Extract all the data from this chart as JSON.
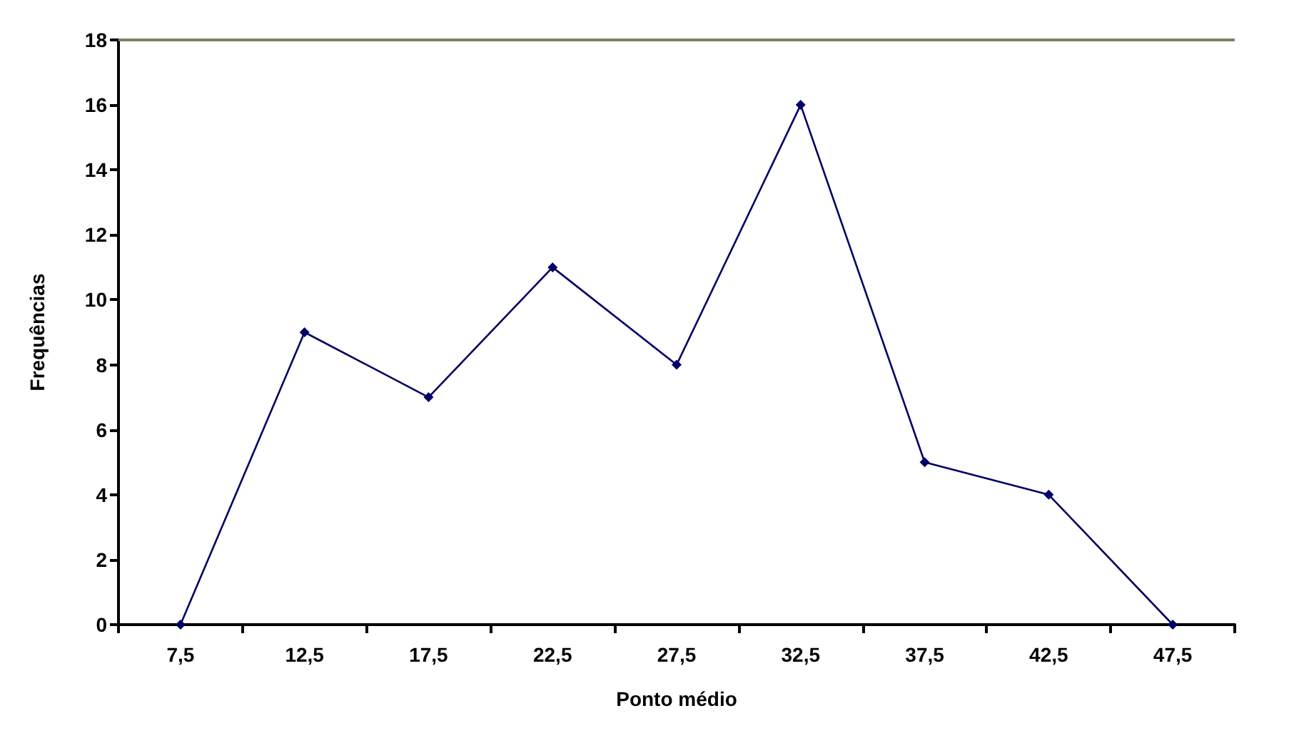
{
  "chart_data": {
    "type": "line",
    "xlabel": "Ponto médio",
    "ylabel": "Frequências",
    "categories": [
      "7,5",
      "12,5",
      "17,5",
      "22,5",
      "27,5",
      "32,5",
      "37,5",
      "42,5",
      "47,5"
    ],
    "values": [
      0,
      9,
      7,
      11,
      8,
      16,
      5,
      4,
      0
    ],
    "color": "#000066",
    "marker": "diamond",
    "line_style": "solid",
    "ylim": [
      0,
      18
    ],
    "yticks": [
      0,
      2,
      4,
      6,
      8,
      10,
      12,
      14,
      16,
      18
    ],
    "ref_lines": [
      {
        "axis": "y",
        "value": 18,
        "color": "#808060"
      }
    ],
    "grid": false
  }
}
